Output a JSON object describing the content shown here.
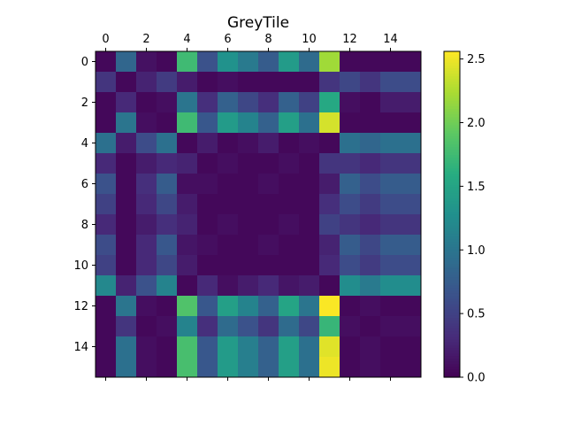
{
  "chart_data": {
    "type": "heatmap",
    "title": "GreyTile",
    "xlabel": "",
    "ylabel": "",
    "x_axis_position": "top",
    "x_ticks": [
      0,
      2,
      4,
      6,
      8,
      10,
      12,
      14
    ],
    "y_ticks": [
      0,
      2,
      4,
      6,
      8,
      10,
      12,
      14
    ],
    "xlim": [
      -0.5,
      15.5
    ],
    "ylim": [
      15.5,
      -0.5
    ],
    "grid": false,
    "colormap": "viridis",
    "color_range": [
      0,
      2.56
    ],
    "colorbar_ticks": [
      0.0,
      0.5,
      1.0,
      1.5,
      2.0,
      2.5
    ],
    "colorbar_tick_labels": [
      "0.0",
      "0.5",
      "1.0",
      "1.5",
      "2.0",
      "2.5"
    ],
    "colorbar_position": "right",
    "values": [
      [
        0.05,
        0.85,
        0.12,
        0.05,
        1.75,
        0.65,
        1.3,
        1.05,
        0.75,
        1.4,
        0.9,
        2.2,
        0.05,
        0.05,
        0.05,
        0.05
      ],
      [
        0.4,
        0.05,
        0.25,
        0.45,
        0.2,
        0.05,
        0.1,
        0.05,
        0.05,
        0.05,
        0.05,
        0.4,
        0.55,
        0.4,
        0.6,
        0.6
      ],
      [
        0.05,
        0.3,
        0.05,
        0.1,
        1.0,
        0.35,
        0.8,
        0.55,
        0.35,
        0.8,
        0.5,
        1.55,
        0.1,
        0.05,
        0.2,
        0.2
      ],
      [
        0.05,
        1.0,
        0.1,
        0.05,
        1.75,
        0.7,
        1.4,
        1.15,
        0.8,
        1.45,
        0.95,
        2.4,
        0.05,
        0.05,
        0.05,
        0.05
      ],
      [
        0.95,
        0.2,
        0.6,
        0.95,
        0.05,
        0.2,
        0.05,
        0.1,
        0.2,
        0.05,
        0.1,
        0.05,
        0.95,
        0.85,
        0.95,
        0.95
      ],
      [
        0.3,
        0.05,
        0.2,
        0.3,
        0.25,
        0.05,
        0.1,
        0.05,
        0.05,
        0.1,
        0.05,
        0.4,
        0.4,
        0.3,
        0.4,
        0.4
      ],
      [
        0.65,
        0.05,
        0.35,
        0.75,
        0.1,
        0.1,
        0.05,
        0.05,
        0.1,
        0.05,
        0.05,
        0.2,
        0.8,
        0.6,
        0.75,
        0.75
      ],
      [
        0.5,
        0.05,
        0.3,
        0.55,
        0.2,
        0.05,
        0.05,
        0.05,
        0.05,
        0.05,
        0.05,
        0.35,
        0.6,
        0.45,
        0.6,
        0.6
      ],
      [
        0.3,
        0.05,
        0.2,
        0.35,
        0.25,
        0.05,
        0.1,
        0.05,
        0.05,
        0.1,
        0.05,
        0.5,
        0.4,
        0.3,
        0.4,
        0.4
      ],
      [
        0.6,
        0.05,
        0.3,
        0.7,
        0.15,
        0.1,
        0.05,
        0.05,
        0.1,
        0.05,
        0.05,
        0.25,
        0.75,
        0.55,
        0.75,
        0.75
      ],
      [
        0.5,
        0.05,
        0.3,
        0.55,
        0.2,
        0.05,
        0.05,
        0.05,
        0.05,
        0.05,
        0.05,
        0.3,
        0.6,
        0.45,
        0.6,
        0.6
      ],
      [
        1.2,
        0.25,
        0.65,
        1.15,
        0.05,
        0.3,
        0.1,
        0.2,
        0.3,
        0.15,
        0.2,
        0.05,
        1.25,
        1.05,
        1.25,
        1.25
      ],
      [
        0.05,
        1.0,
        0.1,
        0.05,
        1.85,
        0.7,
        1.45,
        1.15,
        0.8,
        1.5,
        1.0,
        2.55,
        0.05,
        0.1,
        0.05,
        0.05
      ],
      [
        0.05,
        0.4,
        0.05,
        0.1,
        1.15,
        0.35,
        0.9,
        0.65,
        0.4,
        0.9,
        0.55,
        1.7,
        0.1,
        0.05,
        0.1,
        0.1
      ],
      [
        0.05,
        0.95,
        0.1,
        0.05,
        1.8,
        0.7,
        1.4,
        1.1,
        0.8,
        1.45,
        0.95,
        2.45,
        0.05,
        0.1,
        0.05,
        0.05
      ],
      [
        0.05,
        0.95,
        0.1,
        0.05,
        1.8,
        0.7,
        1.4,
        1.1,
        0.8,
        1.45,
        0.95,
        2.5,
        0.05,
        0.1,
        0.05,
        0.05
      ]
    ]
  }
}
